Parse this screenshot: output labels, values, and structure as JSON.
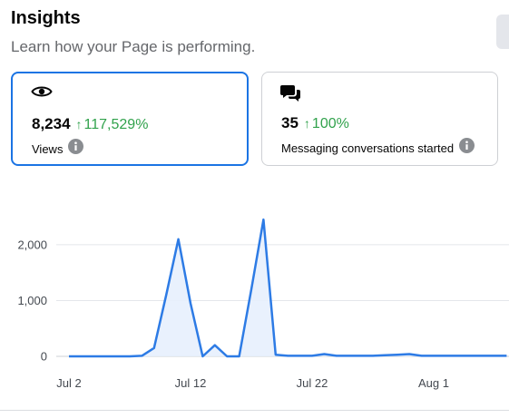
{
  "header": {
    "title": "Insights",
    "subtitle": "Learn how your Page is performing."
  },
  "cards": [
    {
      "icon": "eye-icon",
      "value": "8,234",
      "change": "117,529%",
      "change_direction": "up",
      "label": "Views",
      "selected": true
    },
    {
      "icon": "chat-bubbles-icon",
      "value": "35",
      "change": "100%",
      "change_direction": "up",
      "label": "Messaging conversations started",
      "selected": false
    }
  ],
  "colors": {
    "accent": "#1b74e4",
    "line": "#2d7be5",
    "area": "#e7f0fd",
    "positive": "#31a24c"
  },
  "chart_data": {
    "type": "area",
    "x": [
      "Jul 2",
      "Jul 3",
      "Jul 4",
      "Jul 5",
      "Jul 6",
      "Jul 7",
      "Jul 8",
      "Jul 9",
      "Jul 10",
      "Jul 11",
      "Jul 12",
      "Jul 13",
      "Jul 14",
      "Jul 15",
      "Jul 16",
      "Jul 17",
      "Jul 18",
      "Jul 19",
      "Jul 20",
      "Jul 21",
      "Jul 22",
      "Jul 23",
      "Jul 24",
      "Jul 25",
      "Jul 26",
      "Jul 27",
      "Jul 28",
      "Jul 29",
      "Jul 30",
      "Jul 31",
      "Aug 1",
      "Aug 2",
      "Aug 3",
      "Aug 4",
      "Aug 5",
      "Aug 6",
      "Aug 7"
    ],
    "series": [
      {
        "values": [
          0,
          0,
          0,
          0,
          0,
          0,
          10,
          150,
          1100,
          2100,
          950,
          0,
          200,
          0,
          0,
          1200,
          2450,
          30,
          10,
          10,
          10,
          40,
          10,
          10,
          10,
          10,
          20,
          30,
          40,
          10,
          10,
          10,
          10,
          10,
          10,
          10,
          10
        ]
      }
    ],
    "x_tick_labels": [
      "Jul 2",
      "Jul 12",
      "Jul 22",
      "Aug 1"
    ],
    "y_tick_labels": [
      "0",
      "1,000",
      "2,000"
    ],
    "ylim": [
      0,
      2600
    ],
    "grid": true
  }
}
